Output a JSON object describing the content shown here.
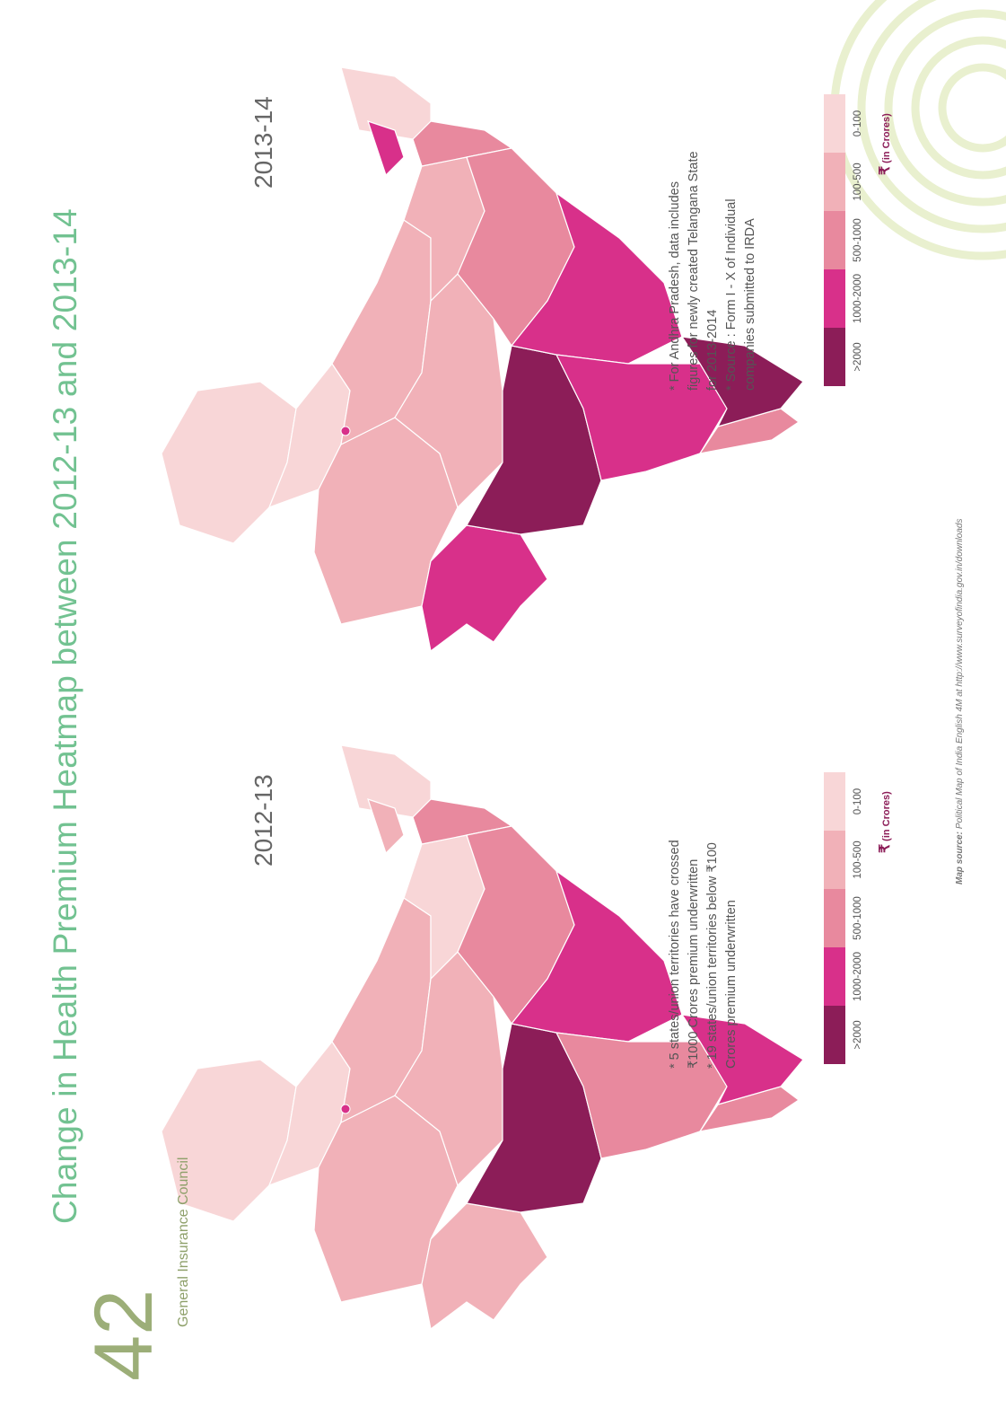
{
  "header": {
    "title": "Change in Health Premium Heatmap between 2012-13 and 2013-14",
    "page_number": "42",
    "publisher": "General Insurance Council"
  },
  "maps": [
    {
      "year": "2012-13",
      "notes": [
        "* 5 states/union territories have crossed ₹1000 Crores premium underwritten",
        "* 19 states/union territories below ₹100 Crores premium underwritten"
      ],
      "legend": {
        "classes": [
          ">2000",
          "1000-2000",
          "500-1000",
          "100-500",
          "0-100"
        ],
        "colors": [
          "#8c1d58",
          "#d8308a",
          "#e8899e",
          "#f1b1b8",
          "#f8d6d7"
        ],
        "unit_symbol": "₹",
        "unit": "(in Crores)"
      }
    },
    {
      "year": "2013-14",
      "notes": [
        "* For Andhra Pradesh, data includes figures for newly created Telangana State for 2013-2014",
        "* Source : Form I - X of Individual companies submitted to IRDA"
      ],
      "legend": {
        "classes": [
          ">2000",
          "1000-2000",
          "500-1000",
          "100-500",
          "0-100"
        ],
        "colors": [
          "#8c1d58",
          "#d8308a",
          "#e8899e",
          "#f1b1b8",
          "#f8d6d7"
        ],
        "unit_symbol": "₹",
        "unit": "(in Crores)"
      }
    }
  ],
  "source": {
    "label": "Map source:",
    "text": "Political Map of India English 4M at http://www.surveyofindia.gov.in/downloads"
  }
}
